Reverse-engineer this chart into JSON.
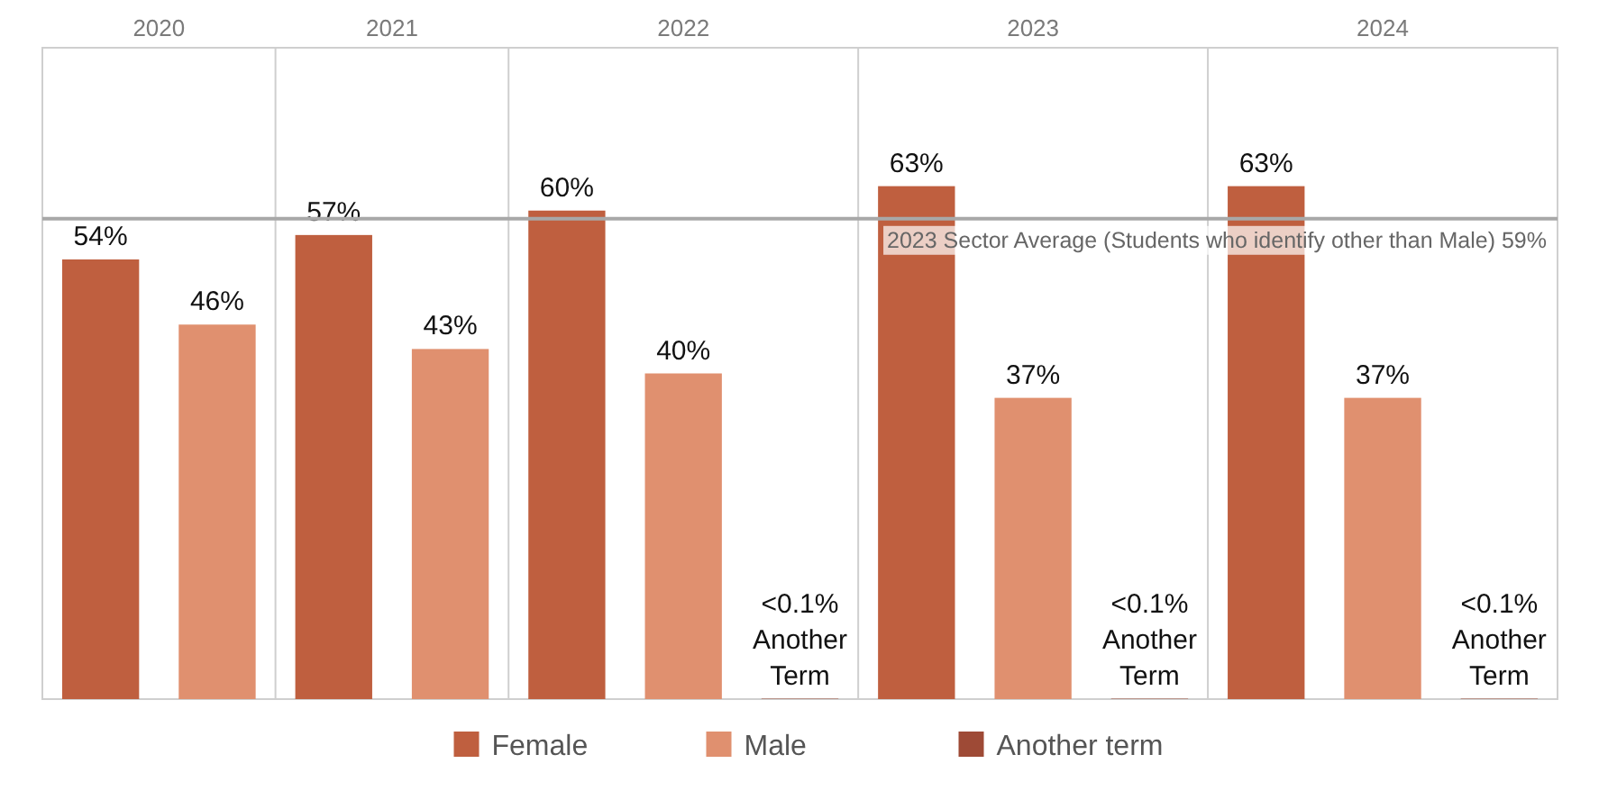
{
  "chart_data": {
    "type": "bar",
    "categories": [
      "2020",
      "2021",
      "2022",
      "2023",
      "2024"
    ],
    "series": [
      {
        "name": "Female",
        "color": "#bf5f3f",
        "values": [
          54,
          57,
          60,
          63,
          63
        ],
        "value_labels": [
          "54%",
          "57%",
          "60%",
          "63%",
          "63%"
        ]
      },
      {
        "name": "Male",
        "color": "#e0906f",
        "values": [
          46,
          43,
          40,
          37,
          37
        ],
        "value_labels": [
          "46%",
          "43%",
          "40%",
          "37%",
          "37%"
        ]
      },
      {
        "name": "Another term",
        "color": "#9e4a36",
        "values": [
          null,
          null,
          0.05,
          0.05,
          0.05
        ],
        "value_labels": [
          null,
          null,
          "<0.1% Another Term",
          "<0.1% Another Term",
          "<0.1% Another Term"
        ]
      }
    ],
    "ylim": [
      0,
      80
    ],
    "ref_lines": [
      {
        "axis": "y",
        "value": 59,
        "label": "2023 Sector Average (Students who identify other than Male) 59%",
        "color": "#a8a8a8"
      }
    ],
    "legend": "bottom"
  }
}
